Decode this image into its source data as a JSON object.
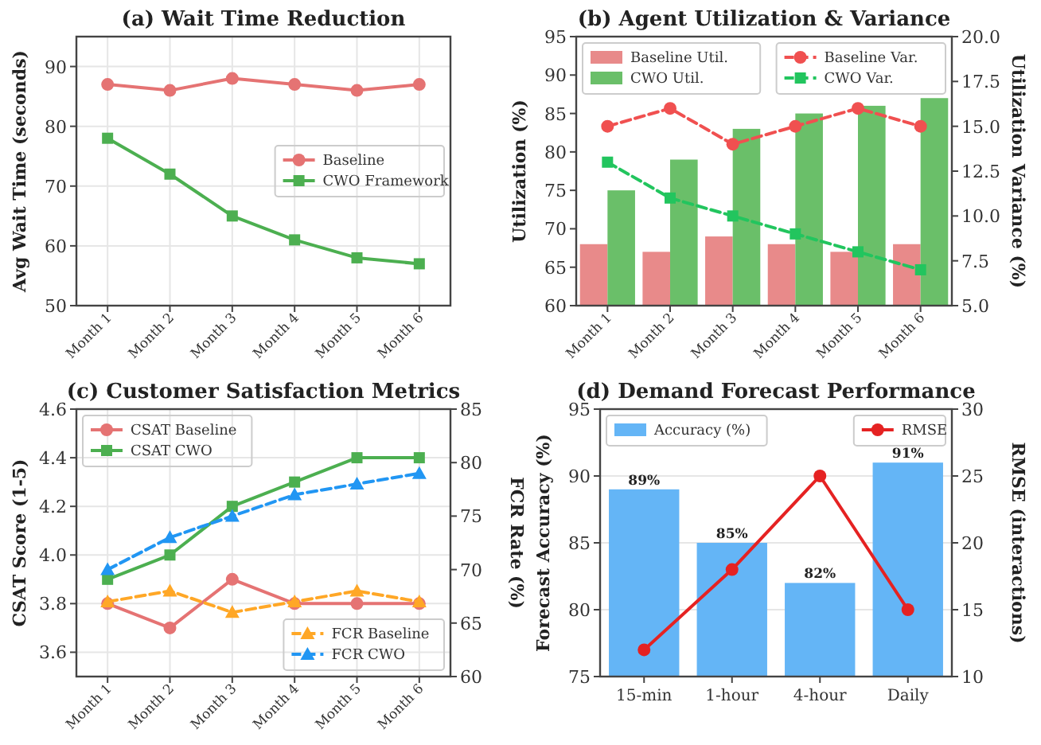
{
  "chart_data": [
    {
      "type": "line",
      "title": "(a) Wait Time Reduction",
      "ylabel": "Avg Wait Time (seconds)",
      "categories": [
        "Month 1",
        "Month 2",
        "Month 3",
        "Month 4",
        "Month 5",
        "Month 6"
      ],
      "ylim": [
        50,
        95
      ],
      "yticks": [
        50,
        60,
        70,
        80,
        90
      ],
      "grid": true,
      "legend": "right",
      "series": [
        {
          "name": "Baseline",
          "color": "#e57373",
          "values": [
            87,
            86,
            88,
            87,
            86,
            87
          ],
          "marker": "circle",
          "line_style": "solid"
        },
        {
          "name": "CWO Framework",
          "color": "#4caf50",
          "values": [
            78,
            72,
            65,
            61,
            58,
            57
          ],
          "marker": "square",
          "line_style": "solid"
        }
      ]
    },
    {
      "type": "bar",
      "title": "(b) Agent Utilization & Variance",
      "ylabel": "Utilization (%)",
      "y2label": "Utilization Variance (%)",
      "categories": [
        "Month 1",
        "Month 2",
        "Month 3",
        "Month 4",
        "Month 5",
        "Month 6"
      ],
      "ylim": [
        60,
        95
      ],
      "yticks": [
        60,
        65,
        70,
        75,
        80,
        85,
        90,
        95
      ],
      "y2lim": [
        5,
        20
      ],
      "y2ticks": [
        {
          "value": 5,
          "label": "5.0"
        },
        {
          "value": 7.5,
          "label": "7.5"
        },
        {
          "value": 10,
          "label": "10.0"
        },
        {
          "value": 12.5,
          "label": "12.5"
        },
        {
          "value": 15,
          "label": "15.0"
        },
        {
          "value": 17.5,
          "label": "17.5"
        },
        {
          "value": 20,
          "label": "20.0"
        }
      ],
      "grid": false,
      "legend": "top",
      "series": [
        {
          "name": "Baseline Util.",
          "type": "bar",
          "color": "#e88a8a",
          "values": [
            68,
            67,
            69,
            68,
            67,
            68
          ]
        },
        {
          "name": "CWO Util.",
          "type": "bar",
          "color": "#6abf69",
          "values": [
            75,
            79,
            83,
            85,
            86,
            87
          ]
        },
        {
          "name": "Baseline Var.",
          "type": "line",
          "axis": "y2",
          "color": "#f05050",
          "values": [
            15,
            16,
            14,
            15,
            16,
            15
          ],
          "marker": "circle",
          "line_style": "dashed"
        },
        {
          "name": "CWO Var.",
          "type": "line",
          "axis": "y2",
          "color": "#22c55e",
          "values": [
            13,
            11,
            10,
            9,
            8,
            7
          ],
          "marker": "square",
          "line_style": "dashed"
        }
      ]
    },
    {
      "type": "line",
      "title": "(c) Customer Satisfaction Metrics",
      "ylabel": "CSAT Score (1-5)",
      "y2label": "FCR Rate (%)",
      "categories": [
        "Month 1",
        "Month 2",
        "Month 3",
        "Month 4",
        "Month 5",
        "Month 6"
      ],
      "ylim": [
        3.5,
        4.6
      ],
      "yticks": [
        3.6,
        3.8,
        {
          "value": 4,
          "label": "4.0"
        },
        4.2,
        4.4,
        4.6
      ],
      "y2lim": [
        60,
        85
      ],
      "y2ticks": [
        60,
        65,
        70,
        75,
        80,
        85
      ],
      "grid": true,
      "legend": "top left",
      "series": [
        {
          "name": "CSAT Baseline",
          "color": "#e57373",
          "values": [
            3.8,
            3.7,
            3.9,
            3.8,
            3.8,
            3.8
          ],
          "marker": "circle",
          "line_style": "solid"
        },
        {
          "name": "CSAT CWO",
          "color": "#4caf50",
          "values": [
            3.9,
            4.0,
            4.2,
            4.3,
            4.4,
            4.4
          ],
          "marker": "square",
          "line_style": "solid"
        },
        {
          "name": "FCR Baseline",
          "axis": "y2",
          "color": "#ffa726",
          "values": [
            67,
            68,
            66,
            67,
            68,
            67
          ],
          "marker": "triangle",
          "line_style": "dashed"
        },
        {
          "name": "FCR CWO",
          "axis": "y2",
          "color": "#2196f3",
          "values": [
            70,
            73,
            75,
            77,
            78,
            79
          ],
          "marker": "triangle",
          "line_style": "dashed"
        }
      ]
    },
    {
      "type": "bar",
      "title": "(d) Demand Forecast Performance",
      "ylabel": "Forecast Accuracy (%)",
      "y2label": "RMSE (interactions)",
      "categories": [
        "15-min",
        "1-hour",
        "4-hour",
        "Daily"
      ],
      "ylim": [
        75,
        95
      ],
      "yticks": [
        75,
        80,
        85,
        90,
        95
      ],
      "y2lim": [
        10,
        30
      ],
      "y2ticks": [
        10,
        15,
        20,
        25,
        30
      ],
      "grid": "y",
      "legend": "top",
      "series": [
        {
          "name": "Accuracy (%)",
          "type": "bar",
          "color": "#64b5f6",
          "values": [
            89,
            85,
            82,
            91
          ],
          "value_labels": [
            "89%",
            "85%",
            "82%",
            "91%"
          ]
        },
        {
          "name": "RMSE",
          "type": "line",
          "axis": "y2",
          "color": "#e52222",
          "values": [
            12,
            18,
            25,
            15
          ],
          "marker": "circle",
          "line_style": "solid"
        }
      ]
    }
  ]
}
